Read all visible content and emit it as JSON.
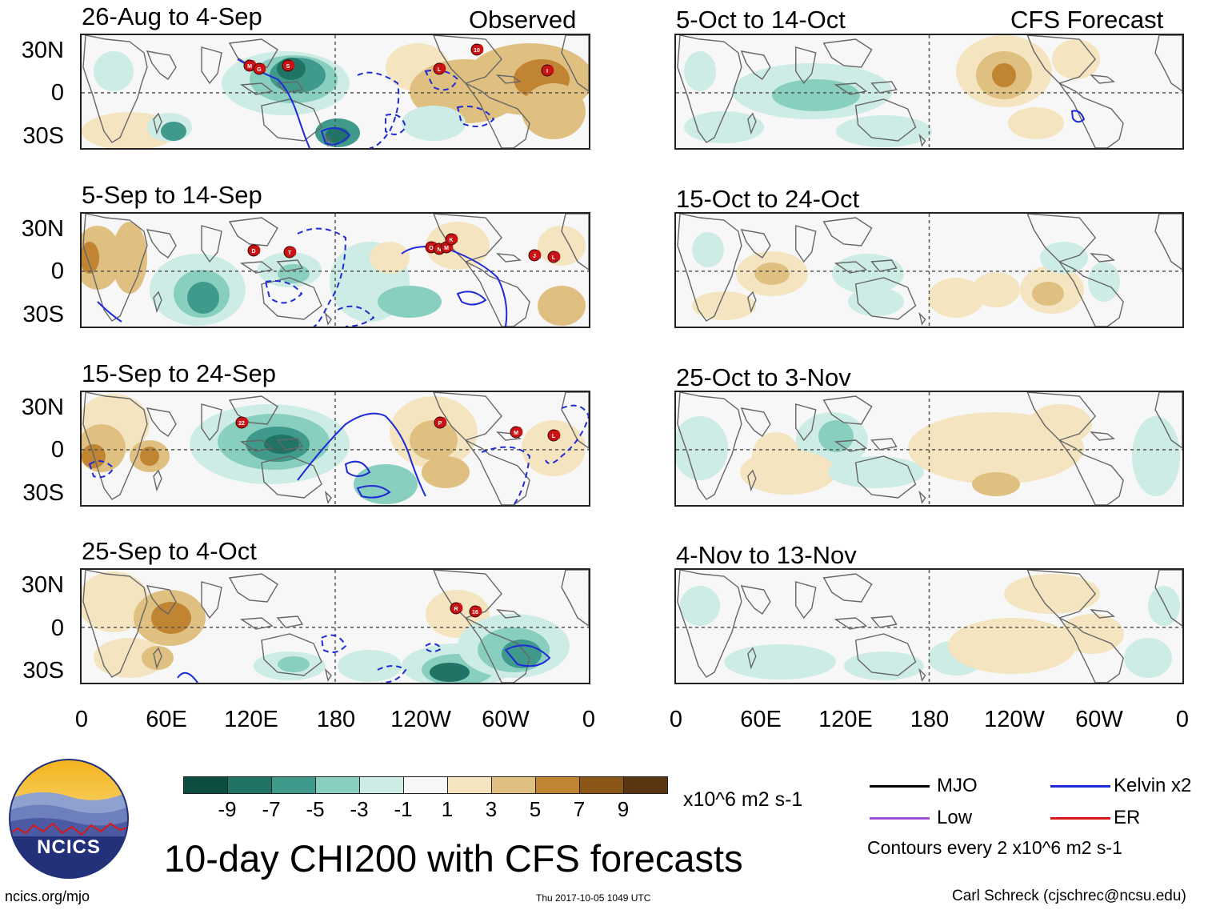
{
  "header": {
    "observed_label": "Observed",
    "forecast_label": "CFS Forecast"
  },
  "panels": {
    "observed": [
      {
        "title": "26-Aug to 4-Sep"
      },
      {
        "title": "5-Sep to 14-Sep"
      },
      {
        "title": "15-Sep to 24-Sep"
      },
      {
        "title": "25-Sep to 4-Oct"
      }
    ],
    "forecast": [
      {
        "title": "5-Oct to 14-Oct"
      },
      {
        "title": "15-Oct to 24-Oct"
      },
      {
        "title": "25-Oct to 3-Nov"
      },
      {
        "title": "4-Nov to 13-Nov"
      }
    ]
  },
  "axes": {
    "lat_labels": [
      "30N",
      "0",
      "30S"
    ],
    "lon_labels": [
      "0",
      "60E",
      "120E",
      "180",
      "120W",
      "60W",
      "0"
    ]
  },
  "storms": {
    "p1": [
      "M",
      "G",
      "S",
      "L",
      "10",
      "I"
    ],
    "p2": [
      "D",
      "T",
      "O",
      "N",
      "M",
      "K",
      "J",
      "L"
    ],
    "p3": [
      "22",
      "P",
      "M",
      "L"
    ],
    "p4": [
      "R",
      "16"
    ]
  },
  "colorbar": {
    "colors": [
      "#0b4d40",
      "#1f7466",
      "#3f9a8c",
      "#88cfc0",
      "#cdece5",
      "#f7f7f7",
      "#f4e5c0",
      "#e0c080",
      "#c08432",
      "#8c5616",
      "#5a3510"
    ],
    "labels": [
      "-9",
      "-7",
      "-5",
      "-3",
      "-1",
      "1",
      "3",
      "5",
      "7",
      "9"
    ],
    "units": "x10^6 m2 s-1"
  },
  "legend": {
    "mjo": "MJO",
    "kelvin": "Kelvin x2",
    "low": "Low",
    "er": "ER",
    "contours": "Contours every 2 x10^6 m2 s-1",
    "mjo_color": "#000000",
    "kelvin_color": "#1f2bd6",
    "low_color": "#a050d8",
    "er_color": "#d81818"
  },
  "title": "10-day CHI200 with CFS forecasts",
  "logo": {
    "text": "NCICS"
  },
  "footer": {
    "url": "ncics.org/mjo",
    "timestamp": "Thu 2017-10-05 1049 UTC",
    "author": "Carl Schreck (cjschrec@ncsu.edu)"
  }
}
